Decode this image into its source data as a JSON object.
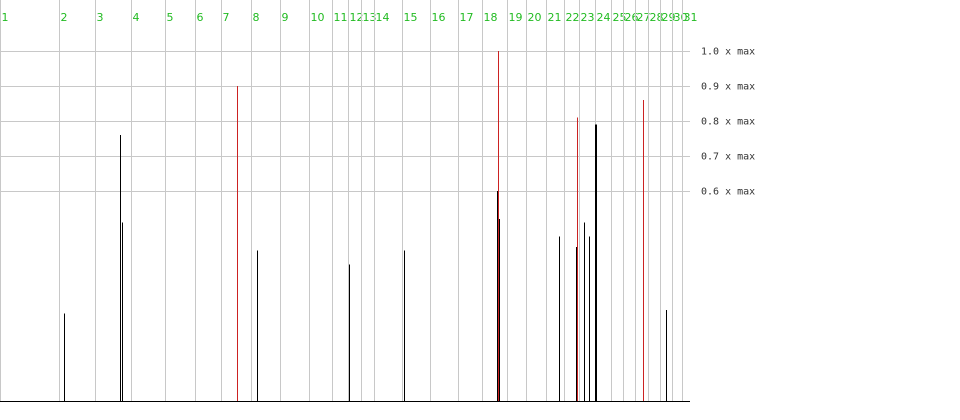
{
  "chart_data": {
    "type": "spike",
    "xlim": [
      0,
      690
    ],
    "xticks": [
      {
        "value": 0,
        "label": "1"
      },
      {
        "value": 59,
        "label": "2"
      },
      {
        "value": 95,
        "label": "3"
      },
      {
        "value": 131,
        "label": "4"
      },
      {
        "value": 165,
        "label": "5"
      },
      {
        "value": 195,
        "label": "6"
      },
      {
        "value": 221,
        "label": "7"
      },
      {
        "value": 251,
        "label": "8"
      },
      {
        "value": 280,
        "label": "9"
      },
      {
        "value": 309,
        "label": "10"
      },
      {
        "value": 332,
        "label": "11"
      },
      {
        "value": 348,
        "label": "12"
      },
      {
        "value": 361,
        "label": "13"
      },
      {
        "value": 374,
        "label": "14"
      },
      {
        "value": 402,
        "label": "15"
      },
      {
        "value": 430,
        "label": "16"
      },
      {
        "value": 458,
        "label": "17"
      },
      {
        "value": 482,
        "label": "18"
      },
      {
        "value": 507,
        "label": "19"
      },
      {
        "value": 526,
        "label": "20"
      },
      {
        "value": 546,
        "label": "21"
      },
      {
        "value": 564,
        "label": "22"
      },
      {
        "value": 579,
        "label": "23"
      },
      {
        "value": 595,
        "label": "24"
      },
      {
        "value": 611,
        "label": "25"
      },
      {
        "value": 623,
        "label": "26"
      },
      {
        "value": 635,
        "label": "27"
      },
      {
        "value": 648,
        "label": "28"
      },
      {
        "value": 660,
        "label": "29"
      },
      {
        "value": 672,
        "label": "30"
      },
      {
        "value": 682,
        "label": "31"
      }
    ],
    "ylim": [
      0,
      1
    ],
    "yticks": [
      {
        "value": 1.0,
        "label": "1.0 x max"
      },
      {
        "value": 0.9,
        "label": "0.9 x max"
      },
      {
        "value": 0.8,
        "label": "0.8 x max"
      },
      {
        "value": 0.7,
        "label": "0.7 x max"
      },
      {
        "value": 0.6,
        "label": "0.6 x max"
      }
    ],
    "grid": true,
    "tick_label_color": "#22bb22",
    "series": [
      {
        "color": "#000000",
        "x": [
          64,
          120,
          122,
          257,
          349,
          404,
          497,
          499,
          559,
          576,
          584,
          589,
          595,
          596,
          666
        ],
        "values": [
          0.25,
          0.76,
          0.51,
          0.43,
          0.39,
          0.43,
          0.6,
          0.52,
          0.47,
          0.44,
          0.51,
          0.47,
          0.79,
          0.79,
          0.26
        ]
      },
      {
        "color": "#cc2222",
        "x": [
          237,
          498,
          577,
          643
        ],
        "values": [
          0.9,
          1.0,
          0.81,
          0.86
        ]
      }
    ]
  }
}
